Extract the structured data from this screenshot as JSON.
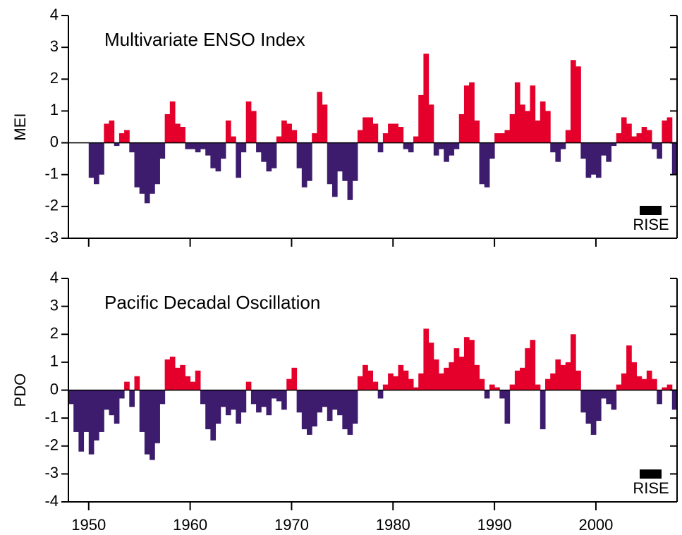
{
  "chart_data": [
    {
      "type": "bar",
      "title": "Multivariate ENSO Index",
      "ylabel": "MEI",
      "annotation": "RISE",
      "positive_color": "#e4002b",
      "negative_color": "#3d1c6e",
      "xlim": [
        1948,
        2008
      ],
      "xticks": [
        1950,
        1960,
        1970,
        1980,
        1990,
        2000
      ],
      "xtick_labels": false,
      "ylim": [
        -3,
        4
      ],
      "yticks": [
        -3,
        -2,
        -1,
        0,
        1,
        2,
        3,
        4
      ],
      "x": [
        1950.0,
        1950.5,
        1951.0,
        1951.5,
        1952.0,
        1952.5,
        1953.0,
        1953.5,
        1954.0,
        1954.5,
        1955.0,
        1955.5,
        1956.0,
        1956.5,
        1957.0,
        1957.5,
        1958.0,
        1958.5,
        1959.0,
        1959.5,
        1960.0,
        1960.5,
        1961.0,
        1961.5,
        1962.0,
        1962.5,
        1963.0,
        1963.5,
        1964.0,
        1964.5,
        1965.0,
        1965.5,
        1966.0,
        1966.5,
        1967.0,
        1967.5,
        1968.0,
        1968.5,
        1969.0,
        1969.5,
        1970.0,
        1970.5,
        1971.0,
        1971.5,
        1972.0,
        1972.5,
        1973.0,
        1973.5,
        1974.0,
        1974.5,
        1975.0,
        1975.5,
        1976.0,
        1976.5,
        1977.0,
        1977.5,
        1978.0,
        1978.5,
        1979.0,
        1979.5,
        1980.0,
        1980.5,
        1981.0,
        1981.5,
        1982.0,
        1982.5,
        1983.0,
        1983.5,
        1984.0,
        1984.5,
        1985.0,
        1985.5,
        1986.0,
        1986.5,
        1987.0,
        1987.5,
        1988.0,
        1988.5,
        1989.0,
        1989.5,
        1990.0,
        1990.5,
        1991.0,
        1991.5,
        1992.0,
        1992.5,
        1993.0,
        1993.5,
        1994.0,
        1994.5,
        1995.0,
        1995.5,
        1996.0,
        1996.5,
        1997.0,
        1997.5,
        1998.0,
        1998.5,
        1999.0,
        1999.5,
        2000.0,
        2000.5,
        2001.0,
        2001.5,
        2002.0,
        2002.5,
        2003.0,
        2003.5,
        2004.0,
        2004.5,
        2005.0,
        2005.5,
        2006.0,
        2006.5,
        2007.0,
        2007.5
      ],
      "values": [
        -1.1,
        -1.3,
        -1.0,
        0.6,
        0.7,
        -0.1,
        0.3,
        0.4,
        -0.3,
        -1.4,
        -1.6,
        -1.9,
        -1.6,
        -1.3,
        -0.5,
        0.9,
        1.3,
        0.6,
        0.5,
        -0.2,
        -0.2,
        -0.3,
        -0.2,
        -0.4,
        -0.8,
        -0.9,
        -0.5,
        0.7,
        0.2,
        -1.1,
        -0.3,
        1.3,
        1.0,
        -0.3,
        -0.6,
        -0.9,
        -0.8,
        0.2,
        0.7,
        0.6,
        0.4,
        -0.8,
        -1.4,
        -1.2,
        0.3,
        1.6,
        1.2,
        -1.3,
        -1.7,
        -0.9,
        -1.2,
        -1.8,
        -1.2,
        0.4,
        0.8,
        0.8,
        0.6,
        -0.3,
        0.3,
        0.6,
        0.6,
        0.5,
        -0.2,
        -0.3,
        0.2,
        1.5,
        2.8,
        1.2,
        -0.4,
        -0.2,
        -0.6,
        -0.4,
        -0.2,
        0.9,
        1.8,
        1.9,
        0.7,
        -1.3,
        -1.4,
        -0.5,
        0.3,
        0.3,
        0.4,
        0.9,
        1.9,
        1.2,
        1.0,
        1.8,
        0.7,
        1.3,
        1.0,
        -0.3,
        -0.6,
        -0.2,
        0.4,
        2.6,
        2.4,
        -0.5,
        -1.1,
        -1.0,
        -1.1,
        -0.4,
        -0.6,
        -0.1,
        0.3,
        0.8,
        0.6,
        0.2,
        0.3,
        0.5,
        0.4,
        -0.2,
        -0.5,
        0.7,
        0.8,
        -1.0
      ]
    },
    {
      "type": "bar",
      "title": "Pacific Decadal Oscillation",
      "ylabel": "PDO",
      "annotation": "RISE",
      "positive_color": "#e4002b",
      "negative_color": "#3d1c6e",
      "xlim": [
        1948,
        2008
      ],
      "xticks": [
        1950,
        1960,
        1970,
        1980,
        1990,
        2000
      ],
      "xtick_labels": true,
      "ylim": [
        -4,
        4
      ],
      "yticks": [
        -4,
        -3,
        -2,
        -1,
        0,
        1,
        2,
        3,
        4
      ],
      "x": [
        1948.0,
        1948.5,
        1949.0,
        1949.5,
        1950.0,
        1950.5,
        1951.0,
        1951.5,
        1952.0,
        1952.5,
        1953.0,
        1953.5,
        1954.0,
        1954.5,
        1955.0,
        1955.5,
        1956.0,
        1956.5,
        1957.0,
        1957.5,
        1958.0,
        1958.5,
        1959.0,
        1959.5,
        1960.0,
        1960.5,
        1961.0,
        1961.5,
        1962.0,
        1962.5,
        1963.0,
        1963.5,
        1964.0,
        1964.5,
        1965.0,
        1965.5,
        1966.0,
        1966.5,
        1967.0,
        1967.5,
        1968.0,
        1968.5,
        1969.0,
        1969.5,
        1970.0,
        1970.5,
        1971.0,
        1971.5,
        1972.0,
        1972.5,
        1973.0,
        1973.5,
        1974.0,
        1974.5,
        1975.0,
        1975.5,
        1976.0,
        1976.5,
        1977.0,
        1977.5,
        1978.0,
        1978.5,
        1979.0,
        1979.5,
        1980.0,
        1980.5,
        1981.0,
        1981.5,
        1982.0,
        1982.5,
        1983.0,
        1983.5,
        1984.0,
        1984.5,
        1985.0,
        1985.5,
        1986.0,
        1986.5,
        1987.0,
        1987.5,
        1988.0,
        1988.5,
        1989.0,
        1989.5,
        1990.0,
        1990.5,
        1991.0,
        1991.5,
        1992.0,
        1992.5,
        1993.0,
        1993.5,
        1994.0,
        1994.5,
        1995.0,
        1995.5,
        1996.0,
        1996.5,
        1997.0,
        1997.5,
        1998.0,
        1998.5,
        1999.0,
        1999.5,
        2000.0,
        2000.5,
        2001.0,
        2001.5,
        2002.0,
        2002.5,
        2003.0,
        2003.5,
        2004.0,
        2004.5,
        2005.0,
        2005.5,
        2006.0,
        2006.5,
        2007.0,
        2007.5
      ],
      "values": [
        -0.5,
        -1.5,
        -2.2,
        -1.5,
        -2.3,
        -1.8,
        -1.5,
        -0.7,
        -0.9,
        -1.2,
        -0.3,
        0.3,
        -0.6,
        0.5,
        -1.5,
        -2.3,
        -2.5,
        -1.9,
        -0.5,
        1.1,
        1.2,
        0.8,
        0.9,
        0.5,
        0.3,
        0.7,
        -0.5,
        -1.4,
        -1.8,
        -1.2,
        -0.6,
        -0.9,
        -0.7,
        -1.2,
        -0.8,
        0.3,
        -0.5,
        -0.8,
        -0.6,
        -0.9,
        -0.3,
        -0.4,
        -0.7,
        0.4,
        0.8,
        -0.8,
        -1.4,
        -1.6,
        -1.3,
        -0.8,
        -0.6,
        -1.1,
        -0.7,
        -0.9,
        -1.4,
        -1.6,
        -1.2,
        0.5,
        0.9,
        0.7,
        0.3,
        -0.3,
        0.2,
        0.6,
        0.5,
        0.9,
        0.7,
        0.4,
        0.1,
        0.6,
        2.2,
        1.7,
        1.1,
        0.6,
        0.8,
        1.0,
        1.5,
        1.2,
        1.9,
        1.8,
        0.9,
        0.4,
        -0.3,
        0.2,
        0.1,
        -0.3,
        -1.2,
        0.2,
        0.7,
        0.8,
        1.5,
        1.8,
        0.2,
        -1.4,
        0.4,
        0.6,
        1.1,
        0.9,
        1.0,
        2.0,
        0.7,
        -0.8,
        -1.2,
        -1.6,
        -1.1,
        -0.3,
        -0.5,
        -0.7,
        0.2,
        0.6,
        1.6,
        1.0,
        0.5,
        0.4,
        0.7,
        0.4,
        -0.5,
        0.1,
        0.2,
        -0.7
      ]
    }
  ]
}
